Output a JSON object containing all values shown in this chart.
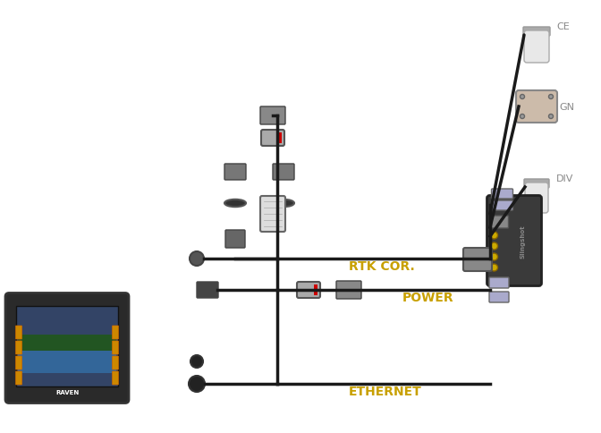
{
  "background_color": "#ffffff",
  "labels": {
    "rtk_cor": "RTK COR.",
    "power": "POWER",
    "ethernet": "ETHERNET",
    "cell": "CE",
    "gnss": "GN",
    "div": "DIV"
  },
  "label_fontsize": 10,
  "label_color": "#c8a000",
  "wire_color": "#1a1a1a",
  "wire_lw": 2.5,
  "red_color": "#cc0000",
  "gold_color": "#ccaa00"
}
